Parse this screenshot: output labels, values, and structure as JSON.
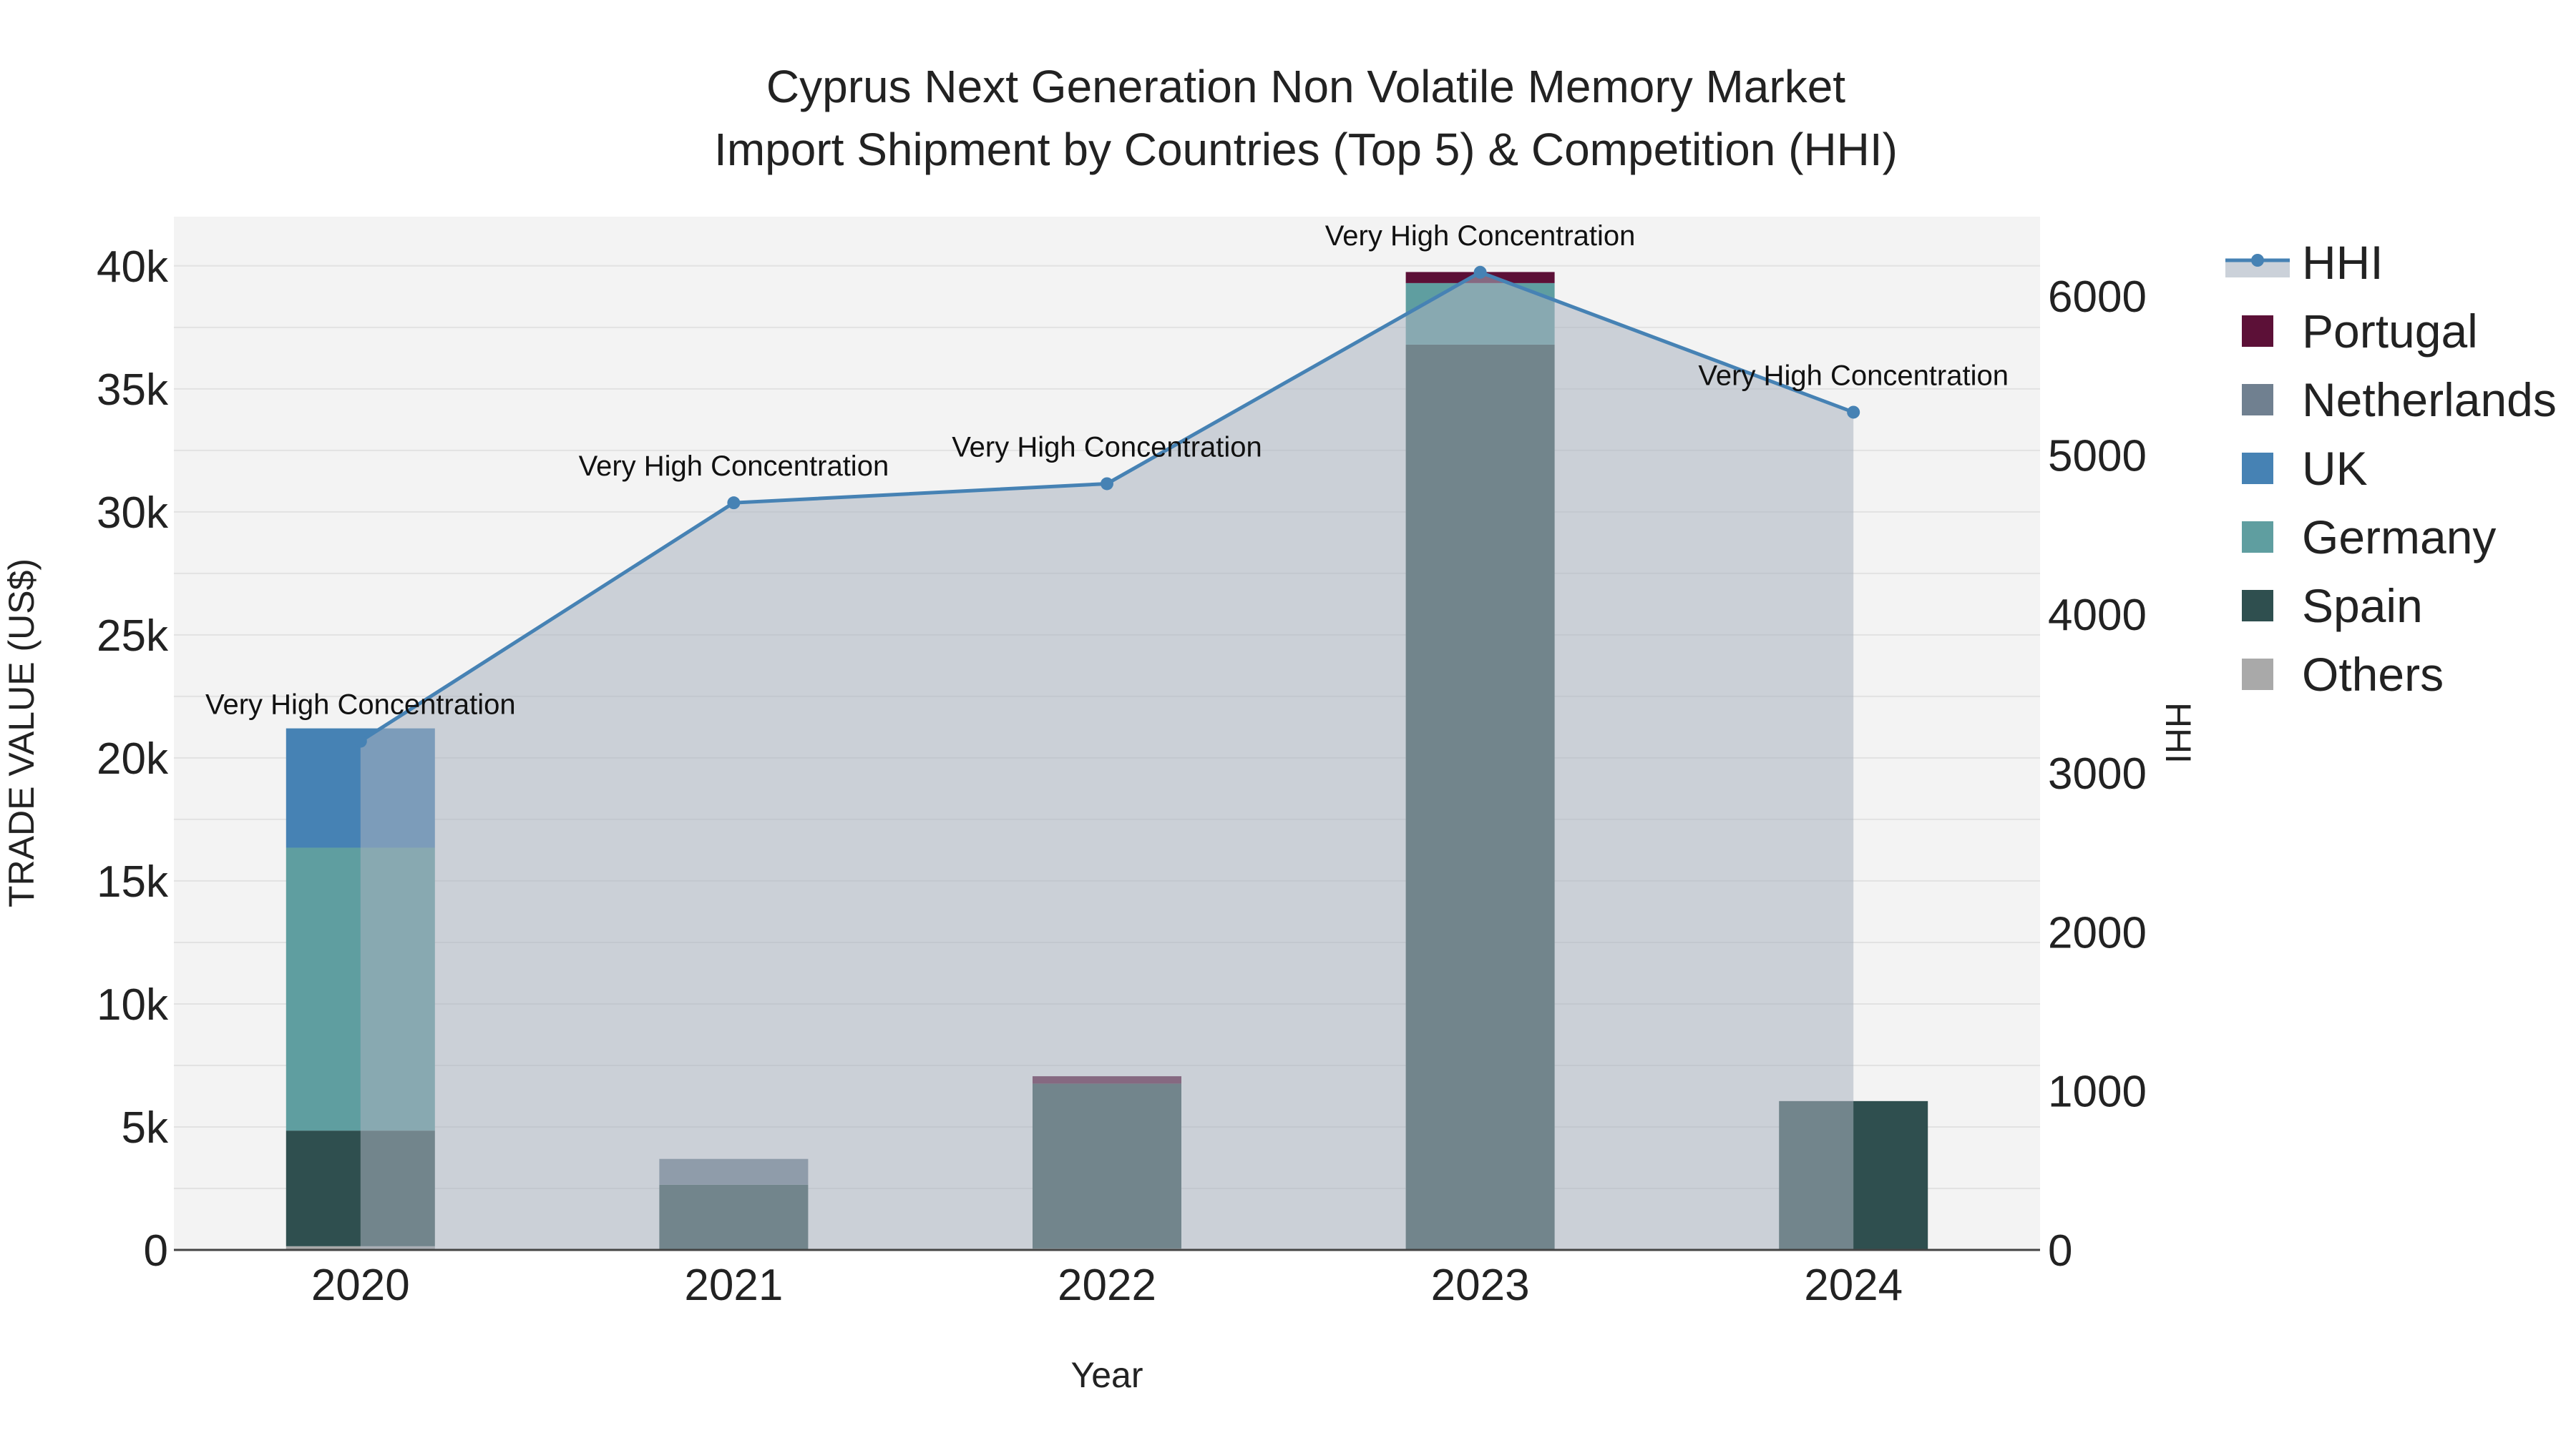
{
  "chart_data": {
    "type": "bar",
    "title_line1": "Cyprus Next Generation Non Volatile Memory Market",
    "title_line2": "Import Shipment by Countries (Top 5) & Competition (HHI)",
    "xlabel": "Year",
    "ylabel": "TRADE VALUE (US$)",
    "y2label": "HHI",
    "categories": [
      "2020",
      "2021",
      "2022",
      "2023",
      "2024"
    ],
    "ylim": [
      0,
      42000
    ],
    "y_ticks": [
      {
        "value": 0,
        "label": "0"
      },
      {
        "value": 5000,
        "label": "5k"
      },
      {
        "value": 10000,
        "label": "10k"
      },
      {
        "value": 15000,
        "label": "15k"
      },
      {
        "value": 20000,
        "label": "20k"
      },
      {
        "value": 25000,
        "label": "25k"
      },
      {
        "value": 30000,
        "label": "30k"
      },
      {
        "value": 35000,
        "label": "35k"
      },
      {
        "value": 40000,
        "label": "40k"
      }
    ],
    "y2lim": [
      0,
      6500
    ],
    "y2_ticks": [
      {
        "value": 0,
        "label": "0"
      },
      {
        "value": 1000,
        "label": "1000"
      },
      {
        "value": 2000,
        "label": "2000"
      },
      {
        "value": 3000,
        "label": "3000"
      },
      {
        "value": 4000,
        "label": "4000"
      },
      {
        "value": 5000,
        "label": "5000"
      },
      {
        "value": 6000,
        "label": "6000"
      }
    ],
    "series": [
      {
        "name": "Others",
        "color": "#A9A9A9",
        "values": [
          150,
          0,
          60,
          0,
          0
        ]
      },
      {
        "name": "Spain",
        "color": "#2F4F4F",
        "values": [
          4700,
          2650,
          6700,
          36800,
          6050
        ]
      },
      {
        "name": "Germany",
        "color": "#5F9EA0",
        "values": [
          11500,
          0,
          0,
          2500,
          0
        ]
      },
      {
        "name": "UK",
        "color": "#4682B4",
        "values": [
          4850,
          0,
          0,
          0,
          0
        ]
      },
      {
        "name": "Netherlands",
        "color": "#708090",
        "values": [
          0,
          1050,
          0,
          0,
          0
        ]
      },
      {
        "name": "Portugal",
        "color": "#5C1037",
        "values": [
          0,
          0,
          300,
          450,
          0
        ]
      }
    ],
    "hhi": {
      "name": "HHI",
      "color": "#4682B4",
      "area_color": "#A9B2C0",
      "values": [
        3200,
        4700,
        4820,
        6150,
        5270
      ],
      "annotations": [
        "Very High Concentration",
        "Very High Concentration",
        "Very High Concentration",
        "Very High Concentration",
        "Very High Concentration"
      ]
    },
    "legend": {
      "position": "right",
      "items": [
        "HHI",
        "Portugal",
        "Netherlands",
        "UK",
        "Germany",
        "Spain",
        "Others"
      ]
    },
    "grid": true
  }
}
